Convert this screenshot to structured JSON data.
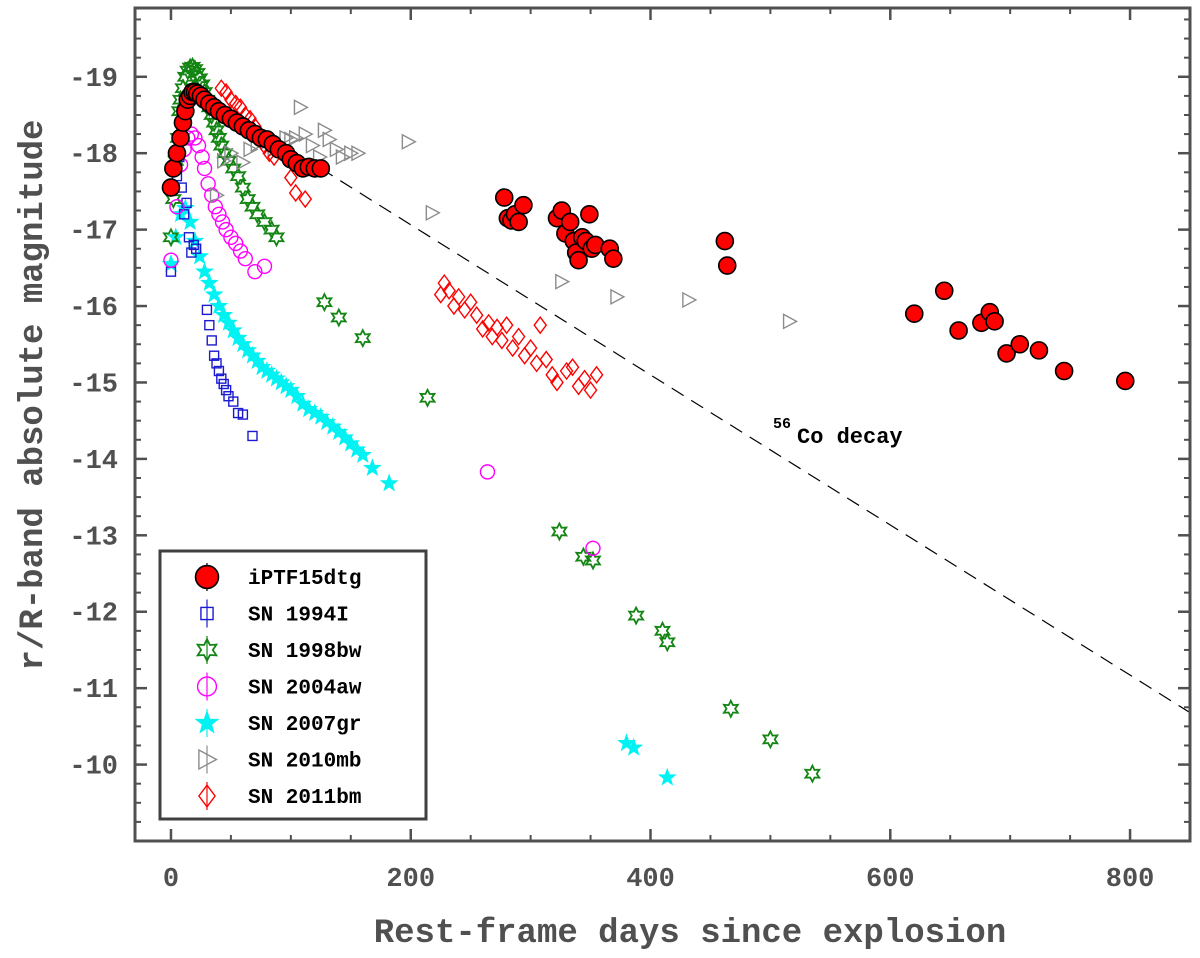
{
  "chart_data": {
    "type": "scatter",
    "title": "",
    "xlabel": "Rest-frame days since explosion",
    "ylabel": "r/R-band absolute magnitude",
    "xlim": [
      -30,
      850
    ],
    "ylim": [
      -19.9,
      -9.0
    ],
    "y_inverted": true,
    "xticks": [
      0,
      200,
      400,
      600,
      800
    ],
    "yticks": [
      -19,
      -18,
      -17,
      -16,
      -15,
      -14,
      -13,
      -12,
      -11,
      -10
    ],
    "xtick_labels": [
      "0",
      "200",
      "400",
      "600",
      "800"
    ],
    "ytick_labels": [
      "-19",
      "-18",
      "-17",
      "-16",
      "-15",
      "-14",
      "-13",
      "-12",
      "-11",
      "-10"
    ],
    "grid": false,
    "legend_position": "bottom-left",
    "annotation": {
      "sup": "56",
      "text": "Co decay",
      "x": 498,
      "y": -14.33
    },
    "decay_line": {
      "label": "56Co decay",
      "points": [
        [
          125,
          -17.8
        ],
        [
          850,
          -10.68
        ]
      ],
      "style": "dashed",
      "color": "#000000"
    },
    "series": [
      {
        "name": "iPTF15dtg",
        "marker": "filled-circle",
        "color": "#ff0000",
        "edge": "#000000",
        "points": [
          [
            0,
            -17.55
          ],
          [
            2,
            -17.8
          ],
          [
            5,
            -18.0
          ],
          [
            8,
            -18.2
          ],
          [
            10,
            -18.4
          ],
          [
            12,
            -18.55
          ],
          [
            14,
            -18.7
          ],
          [
            16,
            -18.75
          ],
          [
            18,
            -18.8
          ],
          [
            20,
            -18.8
          ],
          [
            22,
            -18.78
          ],
          [
            25,
            -18.75
          ],
          [
            28,
            -18.7
          ],
          [
            32,
            -18.65
          ],
          [
            36,
            -18.6
          ],
          [
            40,
            -18.55
          ],
          [
            45,
            -18.5
          ],
          [
            50,
            -18.45
          ],
          [
            55,
            -18.4
          ],
          [
            60,
            -18.35
          ],
          [
            65,
            -18.3
          ],
          [
            70,
            -18.25
          ],
          [
            75,
            -18.2
          ],
          [
            80,
            -18.18
          ],
          [
            85,
            -18.12
          ],
          [
            90,
            -18.05
          ],
          [
            96,
            -18.0
          ],
          [
            100,
            -17.92
          ],
          [
            105,
            -17.87
          ],
          [
            110,
            -17.8
          ],
          [
            115,
            -17.82
          ],
          [
            120,
            -17.8
          ],
          [
            125,
            -17.8
          ],
          [
            278,
            -17.42
          ],
          [
            281,
            -17.15
          ],
          [
            284,
            -17.12
          ],
          [
            287,
            -17.2
          ],
          [
            290,
            -17.1
          ],
          [
            294,
            -17.32
          ],
          [
            322,
            -17.15
          ],
          [
            326,
            -17.25
          ],
          [
            329,
            -16.95
          ],
          [
            333,
            -17.1
          ],
          [
            336,
            -16.85
          ],
          [
            338,
            -16.7
          ],
          [
            340,
            -16.6
          ],
          [
            343,
            -16.9
          ],
          [
            346,
            -16.85
          ],
          [
            349,
            -17.2
          ],
          [
            351,
            -16.75
          ],
          [
            354,
            -16.8
          ],
          [
            366,
            -16.75
          ],
          [
            369,
            -16.62
          ],
          [
            462,
            -16.85
          ],
          [
            464,
            -16.53
          ],
          [
            620,
            -15.9
          ],
          [
            645,
            -16.2
          ],
          [
            657,
            -15.68
          ],
          [
            676,
            -15.78
          ],
          [
            683,
            -15.92
          ],
          [
            687,
            -15.8
          ],
          [
            697,
            -15.38
          ],
          [
            708,
            -15.5
          ],
          [
            724,
            -15.42
          ],
          [
            745,
            -15.15
          ],
          [
            796,
            -15.02
          ]
        ]
      },
      {
        "name": "SN 1994I",
        "marker": "open-square",
        "color": "#1a1ad0",
        "points": [
          [
            0,
            -16.45
          ],
          [
            5,
            -17.7
          ],
          [
            7,
            -17.95
          ],
          [
            9,
            -17.55
          ],
          [
            11,
            -17.2
          ],
          [
            13,
            -17.35
          ],
          [
            15,
            -16.9
          ],
          [
            17,
            -16.7
          ],
          [
            19,
            -16.8
          ],
          [
            21,
            -16.75
          ],
          [
            30,
            -15.95
          ],
          [
            32,
            -15.75
          ],
          [
            34,
            -15.55
          ],
          [
            36,
            -15.35
          ],
          [
            38,
            -15.25
          ],
          [
            40,
            -15.15
          ],
          [
            42,
            -15.05
          ],
          [
            44,
            -14.98
          ],
          [
            46,
            -14.9
          ],
          [
            48,
            -14.82
          ],
          [
            52,
            -14.75
          ],
          [
            56,
            -14.6
          ],
          [
            60,
            -14.58
          ],
          [
            68,
            -14.3
          ]
        ]
      },
      {
        "name": "SN 1998bw",
        "marker": "hexagram",
        "color": "#138513",
        "points": [
          [
            0,
            -16.9
          ],
          [
            2,
            -17.4
          ],
          [
            4,
            -17.9
          ],
          [
            6,
            -18.2
          ],
          [
            7,
            -18.55
          ],
          [
            8,
            -18.7
          ],
          [
            10,
            -18.85
          ],
          [
            12,
            -19.0
          ],
          [
            14,
            -19.08
          ],
          [
            16,
            -19.12
          ],
          [
            18,
            -19.13
          ],
          [
            20,
            -19.1
          ],
          [
            22,
            -19.05
          ],
          [
            24,
            -18.98
          ],
          [
            26,
            -18.9
          ],
          [
            28,
            -18.8
          ],
          [
            30,
            -18.7
          ],
          [
            32,
            -18.6
          ],
          [
            34,
            -18.5
          ],
          [
            36,
            -18.4
          ],
          [
            38,
            -18.3
          ],
          [
            40,
            -18.2
          ],
          [
            42,
            -18.1
          ],
          [
            45,
            -18.0
          ],
          [
            48,
            -17.9
          ],
          [
            52,
            -17.8
          ],
          [
            56,
            -17.7
          ],
          [
            60,
            -17.55
          ],
          [
            64,
            -17.4
          ],
          [
            68,
            -17.3
          ],
          [
            72,
            -17.2
          ],
          [
            78,
            -17.1
          ],
          [
            84,
            -17.0
          ],
          [
            88,
            -16.9
          ],
          [
            128,
            -16.05
          ],
          [
            140,
            -15.85
          ],
          [
            160,
            -15.58
          ],
          [
            214,
            -14.8
          ],
          [
            324,
            -13.05
          ],
          [
            344,
            -12.72
          ],
          [
            352,
            -12.67
          ],
          [
            388,
            -11.95
          ],
          [
            410,
            -11.75
          ],
          [
            414,
            -11.6
          ],
          [
            467,
            -10.73
          ],
          [
            500,
            -10.33
          ],
          [
            535,
            -9.88
          ]
        ]
      },
      {
        "name": "SN 2004aw",
        "marker": "open-circle",
        "color": "#ff00ff",
        "points": [
          [
            0,
            -16.6
          ],
          [
            5,
            -17.3
          ],
          [
            8,
            -17.85
          ],
          [
            11,
            -18.05
          ],
          [
            14,
            -18.2
          ],
          [
            17,
            -18.25
          ],
          [
            20,
            -18.2
          ],
          [
            23,
            -18.1
          ],
          [
            26,
            -17.95
          ],
          [
            28,
            -17.8
          ],
          [
            31,
            -17.6
          ],
          [
            34,
            -17.45
          ],
          [
            37,
            -17.3
          ],
          [
            40,
            -17.2
          ],
          [
            43,
            -17.1
          ],
          [
            46,
            -17.0
          ],
          [
            50,
            -16.9
          ],
          [
            54,
            -16.82
          ],
          [
            58,
            -16.72
          ],
          [
            62,
            -16.62
          ],
          [
            70,
            -16.45
          ],
          [
            78,
            -16.52
          ],
          [
            264,
            -13.83
          ],
          [
            352,
            -12.83
          ]
        ]
      },
      {
        "name": "SN 2007gr",
        "marker": "pentagram",
        "color": "#00f2f2",
        "points": [
          [
            0,
            -16.55
          ],
          [
            4,
            -16.9
          ],
          [
            8,
            -17.2
          ],
          [
            12,
            -17.28
          ],
          [
            16,
            -17.1
          ],
          [
            20,
            -16.85
          ],
          [
            24,
            -16.65
          ],
          [
            28,
            -16.45
          ],
          [
            32,
            -16.3
          ],
          [
            36,
            -16.15
          ],
          [
            40,
            -16.0
          ],
          [
            44,
            -15.88
          ],
          [
            48,
            -15.78
          ],
          [
            52,
            -15.68
          ],
          [
            56,
            -15.58
          ],
          [
            60,
            -15.5
          ],
          [
            64,
            -15.42
          ],
          [
            68,
            -15.35
          ],
          [
            72,
            -15.28
          ],
          [
            76,
            -15.2
          ],
          [
            80,
            -15.15
          ],
          [
            84,
            -15.1
          ],
          [
            88,
            -15.05
          ],
          [
            92,
            -15.0
          ],
          [
            96,
            -14.95
          ],
          [
            100,
            -14.9
          ],
          [
            105,
            -14.82
          ],
          [
            110,
            -14.72
          ],
          [
            115,
            -14.65
          ],
          [
            120,
            -14.6
          ],
          [
            125,
            -14.55
          ],
          [
            130,
            -14.48
          ],
          [
            135,
            -14.42
          ],
          [
            140,
            -14.35
          ],
          [
            145,
            -14.28
          ],
          [
            150,
            -14.2
          ],
          [
            155,
            -14.12
          ],
          [
            160,
            -14.05
          ],
          [
            168,
            -13.88
          ],
          [
            182,
            -13.68
          ],
          [
            380,
            -10.28
          ],
          [
            386,
            -10.22
          ],
          [
            414,
            -9.83
          ]
        ]
      },
      {
        "name": "SN 2010mb",
        "marker": "open-triangle-right",
        "color": "#8c8c8c",
        "points": [
          [
            38,
            -17.45
          ],
          [
            44,
            -17.9
          ],
          [
            50,
            -18.0
          ],
          [
            60,
            -17.88
          ],
          [
            66,
            -18.05
          ],
          [
            72,
            -18.12
          ],
          [
            80,
            -18.15
          ],
          [
            86,
            -18.05
          ],
          [
            92,
            -18.1
          ],
          [
            96,
            -18.2
          ],
          [
            100,
            -18.18
          ],
          [
            104,
            -18.2
          ],
          [
            108,
            -18.6
          ],
          [
            112,
            -18.25
          ],
          [
            118,
            -18.1
          ],
          [
            124,
            -17.95
          ],
          [
            128,
            -18.3
          ],
          [
            132,
            -18.18
          ],
          [
            138,
            -18.05
          ],
          [
            143,
            -17.95
          ],
          [
            150,
            -18.0
          ],
          [
            156,
            -18.0
          ],
          [
            198,
            -18.15
          ],
          [
            218,
            -17.22
          ],
          [
            326,
            -16.32
          ],
          [
            372,
            -16.12
          ],
          [
            432,
            -16.08
          ],
          [
            516,
            -15.8
          ]
        ]
      },
      {
        "name": "SN 2011bm",
        "marker": "open-diamond",
        "color": "#ff0000",
        "points": [
          [
            42,
            -18.85
          ],
          [
            46,
            -18.8
          ],
          [
            50,
            -18.7
          ],
          [
            54,
            -18.65
          ],
          [
            58,
            -18.6
          ],
          [
            62,
            -18.5
          ],
          [
            66,
            -18.45
          ],
          [
            70,
            -18.35
          ],
          [
            74,
            -18.25
          ],
          [
            78,
            -18.1
          ],
          [
            82,
            -18.0
          ],
          [
            86,
            -17.95
          ],
          [
            100,
            -17.68
          ],
          [
            104,
            -17.48
          ],
          [
            112,
            -17.4
          ],
          [
            225,
            -16.15
          ],
          [
            228,
            -16.3
          ],
          [
            232,
            -16.2
          ],
          [
            236,
            -16.0
          ],
          [
            240,
            -16.12
          ],
          [
            245,
            -15.95
          ],
          [
            250,
            -16.05
          ],
          [
            255,
            -15.88
          ],
          [
            260,
            -15.7
          ],
          [
            265,
            -15.78
          ],
          [
            268,
            -15.6
          ],
          [
            272,
            -15.72
          ],
          [
            276,
            -15.55
          ],
          [
            280,
            -15.75
          ],
          [
            285,
            -15.45
          ],
          [
            290,
            -15.6
          ],
          [
            295,
            -15.35
          ],
          [
            300,
            -15.45
          ],
          [
            305,
            -15.25
          ],
          [
            308,
            -15.75
          ],
          [
            313,
            -15.3
          ],
          [
            318,
            -15.1
          ],
          [
            322,
            -15.0
          ],
          [
            330,
            -15.15
          ],
          [
            335,
            -15.2
          ],
          [
            340,
            -14.95
          ],
          [
            345,
            -15.05
          ],
          [
            350,
            -14.9
          ],
          [
            355,
            -15.1
          ]
        ]
      }
    ]
  }
}
